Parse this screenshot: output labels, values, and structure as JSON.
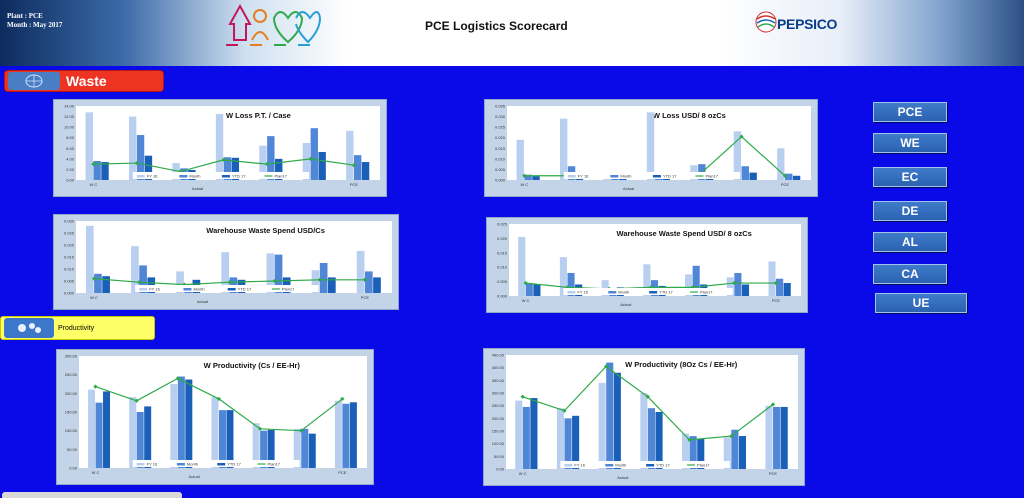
{
  "header": {
    "plant_line": "Plant : PCE",
    "month_line": "Month : May 2017",
    "title": "PCE Logistics Scorecard",
    "brand": "PEPSICO"
  },
  "sections": {
    "waste": "Waste",
    "productivity": "Productivity"
  },
  "side_buttons": [
    "PCE",
    "WE",
    "EC",
    "DE",
    "AL",
    "CA",
    "UE"
  ],
  "colors": {
    "fy16": "#b9cff0",
    "month": "#4f86d6",
    "ytd17": "#1a5fb8",
    "plan17": "#2eaa48",
    "page_bg": "#0a0ae8"
  },
  "legend": {
    "fy16": "FY 16",
    "month": "Month",
    "ytd17": "YTD 17",
    "plan17": "Plan17",
    "actual": "Actual"
  },
  "categories": [
    "W C",
    "",
    "",
    "",
    "",
    "",
    "PCE"
  ],
  "chart_data": [
    {
      "type": "bar",
      "title": "W Loss P.T. / Case",
      "yticks": [
        "0.00",
        "2.00",
        "4.00",
        "6.00",
        "8.00",
        "10.00",
        "12.00",
        "14.00"
      ],
      "ylim": [
        0,
        14
      ],
      "categories": [
        "W C",
        "",
        "",
        "",
        "",
        "",
        "PCE"
      ],
      "series": [
        {
          "name": "FY 16",
          "values": [
            12.8,
            12.0,
            3.2,
            12.5,
            6.5,
            7.0,
            9.3
          ]
        },
        {
          "name": "Month",
          "values": [
            3.6,
            8.5,
            2.2,
            4.3,
            8.3,
            9.8,
            4.7
          ]
        },
        {
          "name": "YTD 17",
          "values": [
            3.4,
            4.6,
            1.9,
            4.2,
            4.0,
            5.3,
            3.4
          ]
        },
        {
          "name": "Plan17",
          "values": [
            3.0,
            3.2,
            1.6,
            3.8,
            3.0,
            4.0,
            2.8
          ]
        }
      ]
    },
    {
      "type": "bar",
      "title": "W Loss USD/ 8 ozCs",
      "yticks": [
        "0.000",
        "0.005",
        "0.010",
        "0.015",
        "0.020",
        "0.025",
        "0.030",
        "0.035"
      ],
      "ylim": [
        0,
        0.035
      ],
      "categories": [
        "W C",
        "",
        "",
        "",
        "",
        "",
        "PCE"
      ],
      "series": [
        {
          "name": "FY 16",
          "values": [
            0.019,
            0.029,
            0.003,
            0.032,
            0.007,
            0.023,
            0.015
          ]
        },
        {
          "name": "Month",
          "values": [
            0.0025,
            0.0065,
            0.0008,
            0.0012,
            0.0075,
            0.0065,
            0.003
          ]
        },
        {
          "name": "YTD 17",
          "values": [
            0.0018,
            0.0035,
            0.0006,
            0.001,
            0.0028,
            0.0035,
            0.002
          ]
        },
        {
          "name": "Plan17",
          "values": [
            0.002,
            0.002,
            0.0015,
            0.0015,
            0.002,
            0.0205,
            0.002
          ]
        }
      ]
    },
    {
      "type": "bar",
      "title": "Warehouse Waste Spend USD/Cs",
      "yticks": [
        "0.000",
        "0.005",
        "0.010",
        "0.015",
        "0.020",
        "0.025",
        "0.030"
      ],
      "ylim": [
        0,
        0.03
      ],
      "categories": [
        "W C",
        "",
        "",
        "",
        "",
        "",
        "PCE"
      ],
      "series": [
        {
          "name": "FY 16",
          "values": [
            0.028,
            0.0195,
            0.009,
            0.017,
            0.0165,
            0.0095,
            0.0175
          ]
        },
        {
          "name": "Month",
          "values": [
            0.008,
            0.0115,
            0.0035,
            0.0065,
            0.016,
            0.0125,
            0.009
          ]
        },
        {
          "name": "YTD 17",
          "values": [
            0.007,
            0.0065,
            0.0055,
            0.0055,
            0.0065,
            0.0065,
            0.0065
          ]
        },
        {
          "name": "Plan17",
          "values": [
            0.006,
            0.0045,
            0.0035,
            0.0045,
            0.005,
            0.0055,
            0.0055
          ]
        }
      ]
    },
    {
      "type": "bar",
      "title": "Warehouse Waste Spend USD/ 8 ozCs",
      "yticks": [
        "0.000",
        "0.005",
        "0.010",
        "0.015",
        "0.020",
        "0.025"
      ],
      "ylim": [
        0,
        0.025
      ],
      "categories": [
        "W C",
        "",
        "",
        "",
        "",
        "",
        "PCE"
      ],
      "series": [
        {
          "name": "FY 16",
          "values": [
            0.0205,
            0.0135,
            0.0055,
            0.011,
            0.0075,
            0.0065,
            0.012
          ]
        },
        {
          "name": "Month",
          "values": [
            0.0045,
            0.008,
            0.0025,
            0.0055,
            0.0105,
            0.008,
            0.006
          ]
        },
        {
          "name": "YTD 17",
          "values": [
            0.004,
            0.004,
            0.003,
            0.0035,
            0.004,
            0.004,
            0.0045
          ]
        },
        {
          "name": "Plan17",
          "values": [
            0.0045,
            0.003,
            0.0025,
            0.003,
            0.003,
            0.0045,
            0.0045
          ]
        }
      ]
    },
    {
      "type": "bar",
      "title": "W Productivity (Cs / EE-Hr)",
      "yticks": [
        "0.00",
        "50.00",
        "100.00",
        "150.00",
        "200.00",
        "250.00",
        "300.00"
      ],
      "ylim": [
        0,
        300
      ],
      "categories": [
        "W C",
        "",
        "",
        "",
        "",
        "",
        "PCE"
      ],
      "series": [
        {
          "name": "FY 16",
          "values": [
            210,
            190,
            225,
            190,
            120,
            105,
            180
          ]
        },
        {
          "name": "Month",
          "values": [
            175,
            150,
            245,
            155,
            100,
            105,
            172
          ]
        },
        {
          "name": "YTD 17",
          "values": [
            205,
            165,
            237,
            155,
            102,
            92,
            176
          ]
        },
        {
          "name": "Plan17",
          "values": [
            218,
            180,
            240,
            185,
            105,
            100,
            185
          ]
        }
      ]
    },
    {
      "type": "bar",
      "title": "W Productivity (8Oz Cs / EE-Hr)",
      "yticks": [
        "0.00",
        "50.00",
        "100.00",
        "150.00",
        "200.00",
        "250.00",
        "300.00",
        "350.00",
        "400.00",
        "450.00"
      ],
      "ylim": [
        0,
        450
      ],
      "categories": [
        "W C",
        "",
        "",
        "",
        "",
        "",
        "PCE"
      ],
      "series": [
        {
          "name": "FY 16",
          "values": [
            270,
            240,
            340,
            300,
            140,
            125,
            250
          ]
        },
        {
          "name": "Month",
          "values": [
            245,
            200,
            420,
            240,
            130,
            155,
            245
          ]
        },
        {
          "name": "YTD 17",
          "values": [
            280,
            210,
            380,
            225,
            120,
            130,
            245
          ]
        },
        {
          "name": "Plan17",
          "values": [
            285,
            230,
            405,
            285,
            115,
            130,
            255
          ]
        }
      ]
    }
  ]
}
